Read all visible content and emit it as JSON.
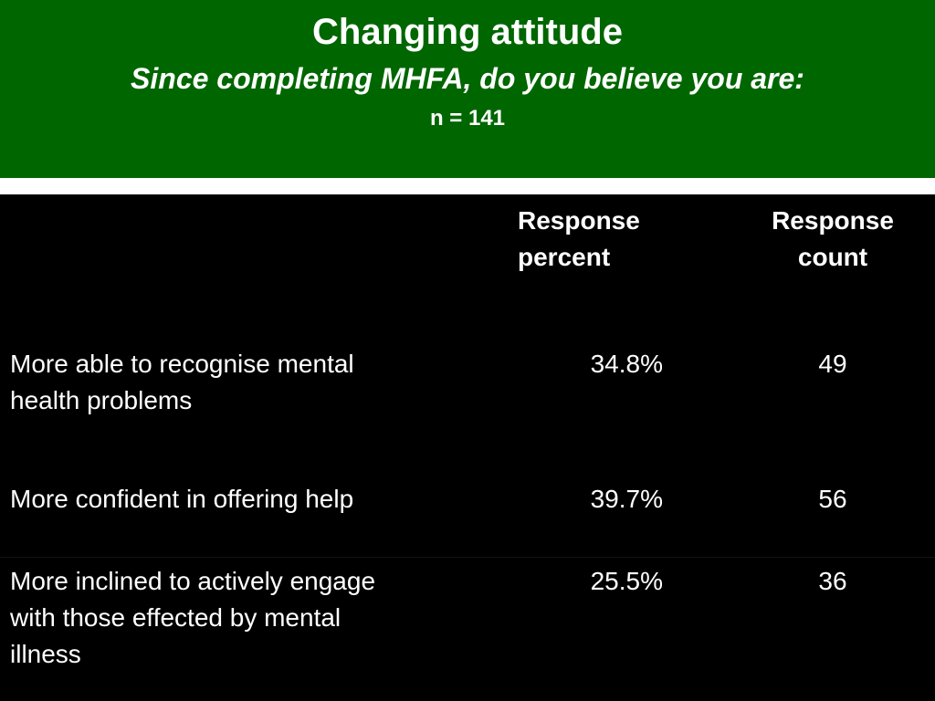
{
  "header": {
    "title": "Changing attitude",
    "subtitle": "Since completing MHFA, do you believe you are:",
    "sample": "n = 141"
  },
  "colors": {
    "header_bg": "#006600",
    "table_bg": "#000000",
    "text": "#ffffff"
  },
  "table": {
    "columns": [
      "Response percent",
      "Response count"
    ],
    "column_lines": [
      [
        "Response",
        "percent"
      ],
      [
        "Response",
        "count"
      ]
    ],
    "rows": [
      {
        "label": "More able to recognise mental health problems",
        "label_lines": [
          "More able to recognise mental",
          "health problems"
        ],
        "percent": "34.8%",
        "count": "49"
      },
      {
        "label": "More confident in offering help",
        "label_lines": [
          "More confident in offering help"
        ],
        "percent": "39.7%",
        "count": "56"
      },
      {
        "label": "More inclined to actively engage with those effected by mental illness",
        "label_lines": [
          "More inclined to actively engage",
          "with those effected by mental",
          "illness"
        ],
        "percent": "25.5%",
        "count": "36"
      }
    ]
  }
}
